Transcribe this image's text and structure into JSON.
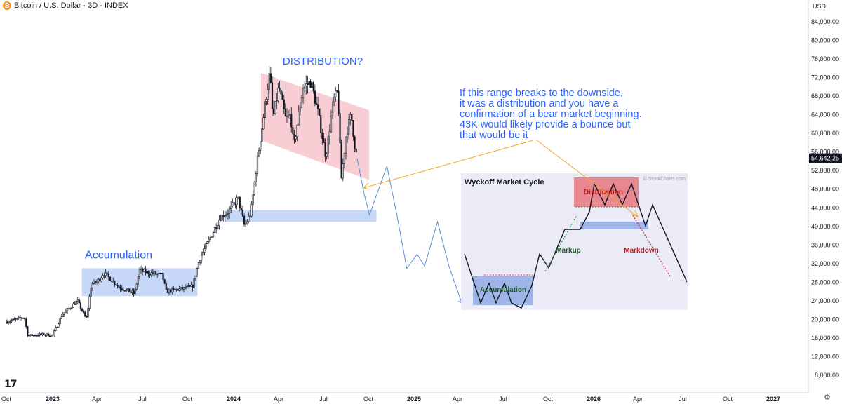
{
  "header": {
    "symbol_icon": "bitcoin-icon",
    "title": "Bitcoin / U.S. Dollar · 3D · INDEX",
    "currency": "USD"
  },
  "chart_data": {
    "type": "candlestick",
    "y_axis": {
      "ticks": [
        "84,000.00",
        "80,000.00",
        "76,000.00",
        "72,000.00",
        "68,000.00",
        "64,000.00",
        "60,000.00",
        "56,000.00",
        "52,000.00",
        "48,000.00",
        "44,000.00",
        "40,000.00",
        "36,000.00",
        "32,000.00",
        "28,000.00",
        "24,000.00",
        "20,000.00",
        "16,000.00",
        "12,000.00",
        "8,000.00"
      ],
      "tick_values": [
        84000,
        80000,
        76000,
        72000,
        68000,
        64000,
        60000,
        56000,
        52000,
        48000,
        44000,
        40000,
        36000,
        32000,
        28000,
        24000,
        20000,
        16000,
        12000,
        8000
      ],
      "last_price_label": "54,642.25",
      "last_price": 54642.25
    },
    "x_axis": {
      "ticks": [
        "Oct",
        "2023",
        "Apr",
        "Jul",
        "Oct",
        "2024",
        "Apr",
        "Jul",
        "Oct",
        "2025",
        "Apr",
        "Jul",
        "Oct",
        "2026",
        "Apr",
        "Jul",
        "Oct",
        "2027"
      ],
      "bold_ticks": [
        "2023",
        "2024",
        "2025",
        "2026",
        "2027"
      ]
    },
    "price_path": [
      [
        "2022-10-01",
        19500
      ],
      [
        "2022-11-05",
        20500
      ],
      [
        "2022-11-12",
        16500
      ],
      [
        "2022-12-15",
        16800
      ],
      [
        "2023-01-01",
        16600
      ],
      [
        "2023-01-20",
        21000
      ],
      [
        "2023-02-20",
        24000
      ],
      [
        "2023-03-10",
        20000
      ],
      [
        "2023-03-20",
        27500
      ],
      [
        "2023-04-05",
        28500
      ],
      [
        "2023-04-14",
        30000
      ],
      [
        "2023-05-15",
        27000
      ],
      [
        "2023-06-15",
        25500
      ],
      [
        "2023-06-25",
        30500
      ],
      [
        "2023-07-15",
        30000
      ],
      [
        "2023-08-10",
        29500
      ],
      [
        "2023-08-18",
        26000
      ],
      [
        "2023-09-15",
        26500
      ],
      [
        "2023-10-10",
        27000
      ],
      [
        "2023-10-24",
        33000
      ],
      [
        "2023-11-10",
        36500
      ],
      [
        "2023-12-05",
        42000
      ],
      [
        "2023-12-20",
        43000
      ],
      [
        "2024-01-10",
        46000
      ],
      [
        "2024-01-23",
        40000
      ],
      [
        "2024-02-05",
        43000
      ],
      [
        "2024-02-15",
        52000
      ],
      [
        "2024-02-28",
        62000
      ],
      [
        "2024-03-05",
        67000
      ],
      [
        "2024-03-14",
        73000
      ],
      [
        "2024-03-20",
        63000
      ],
      [
        "2024-04-01",
        70000
      ],
      [
        "2024-04-15",
        63000
      ],
      [
        "2024-04-25",
        64000
      ],
      [
        "2024-05-01",
        57000
      ],
      [
        "2024-05-20",
        70000
      ],
      [
        "2024-06-05",
        71000
      ],
      [
        "2024-06-20",
        64000
      ],
      [
        "2024-07-05",
        55000
      ],
      [
        "2024-07-20",
        67000
      ],
      [
        "2024-07-29",
        69000
      ],
      [
        "2024-08-05",
        50000
      ],
      [
        "2024-08-15",
        60000
      ],
      [
        "2024-08-25",
        64000
      ],
      [
        "2024-09-01",
        57500
      ],
      [
        "2024-09-06",
        54642
      ]
    ],
    "projection_path": [
      [
        "2024-09-06",
        54642
      ],
      [
        "2024-09-20",
        47000
      ],
      [
        "2024-10-01",
        42500
      ],
      [
        "2024-11-05",
        53000
      ],
      [
        "2024-11-25",
        42500
      ],
      [
        "2024-12-15",
        31000
      ],
      [
        "2025-01-05",
        34000
      ],
      [
        "2025-01-20",
        31500
      ],
      [
        "2025-02-15",
        41000
      ],
      [
        "2025-03-10",
        31500
      ],
      [
        "2025-04-05",
        23500
      ]
    ],
    "zones": [
      {
        "name": "Accumulation",
        "label": "Accumulation",
        "x0": "2023-03-01",
        "x1": "2023-10-20",
        "y0": 25000,
        "y1": 31000
      },
      {
        "name": "Breakout support",
        "label": "",
        "x0": "2023-12-15",
        "x1": "2024-10-15",
        "y0": 41000,
        "y1": 43500
      }
    ],
    "distribution_channel": {
      "label": "DISTRIBUTION?",
      "corners": [
        [
          "2024-02-25",
          73000
        ],
        [
          "2024-09-30",
          65000
        ],
        [
          "2024-09-30",
          50000
        ],
        [
          "2024-02-25",
          58500
        ]
      ]
    },
    "annotation": "If this range breaks to the downside,\nit was a distribution and you have a\nconfirmation of a bear market beginning.\n43K would likely provide a bounce but\nthat would be it",
    "inset": {
      "title": "Wyckoff Market Cycle",
      "source": "© StockCharts.com",
      "labels": [
        "Accumulation",
        "Markup",
        "Distribution",
        "Markdown"
      ]
    }
  },
  "colors": {
    "candle": "#131722",
    "axis_text": "#131722",
    "annotation_blue": "#2962ff",
    "zone_blue": "#bcd0f6",
    "zone_red": "#f7c6cc",
    "projection": "#5b8dd6",
    "arrow_orange": "#f5a623",
    "inset_bg": "#ebebf8",
    "inset_red": "#e8878f",
    "inset_blue": "#9fb4e6",
    "markup_green": "#2e8b3e",
    "markdown_red": "#d22b3b",
    "price_tag_bg": "#131722"
  }
}
